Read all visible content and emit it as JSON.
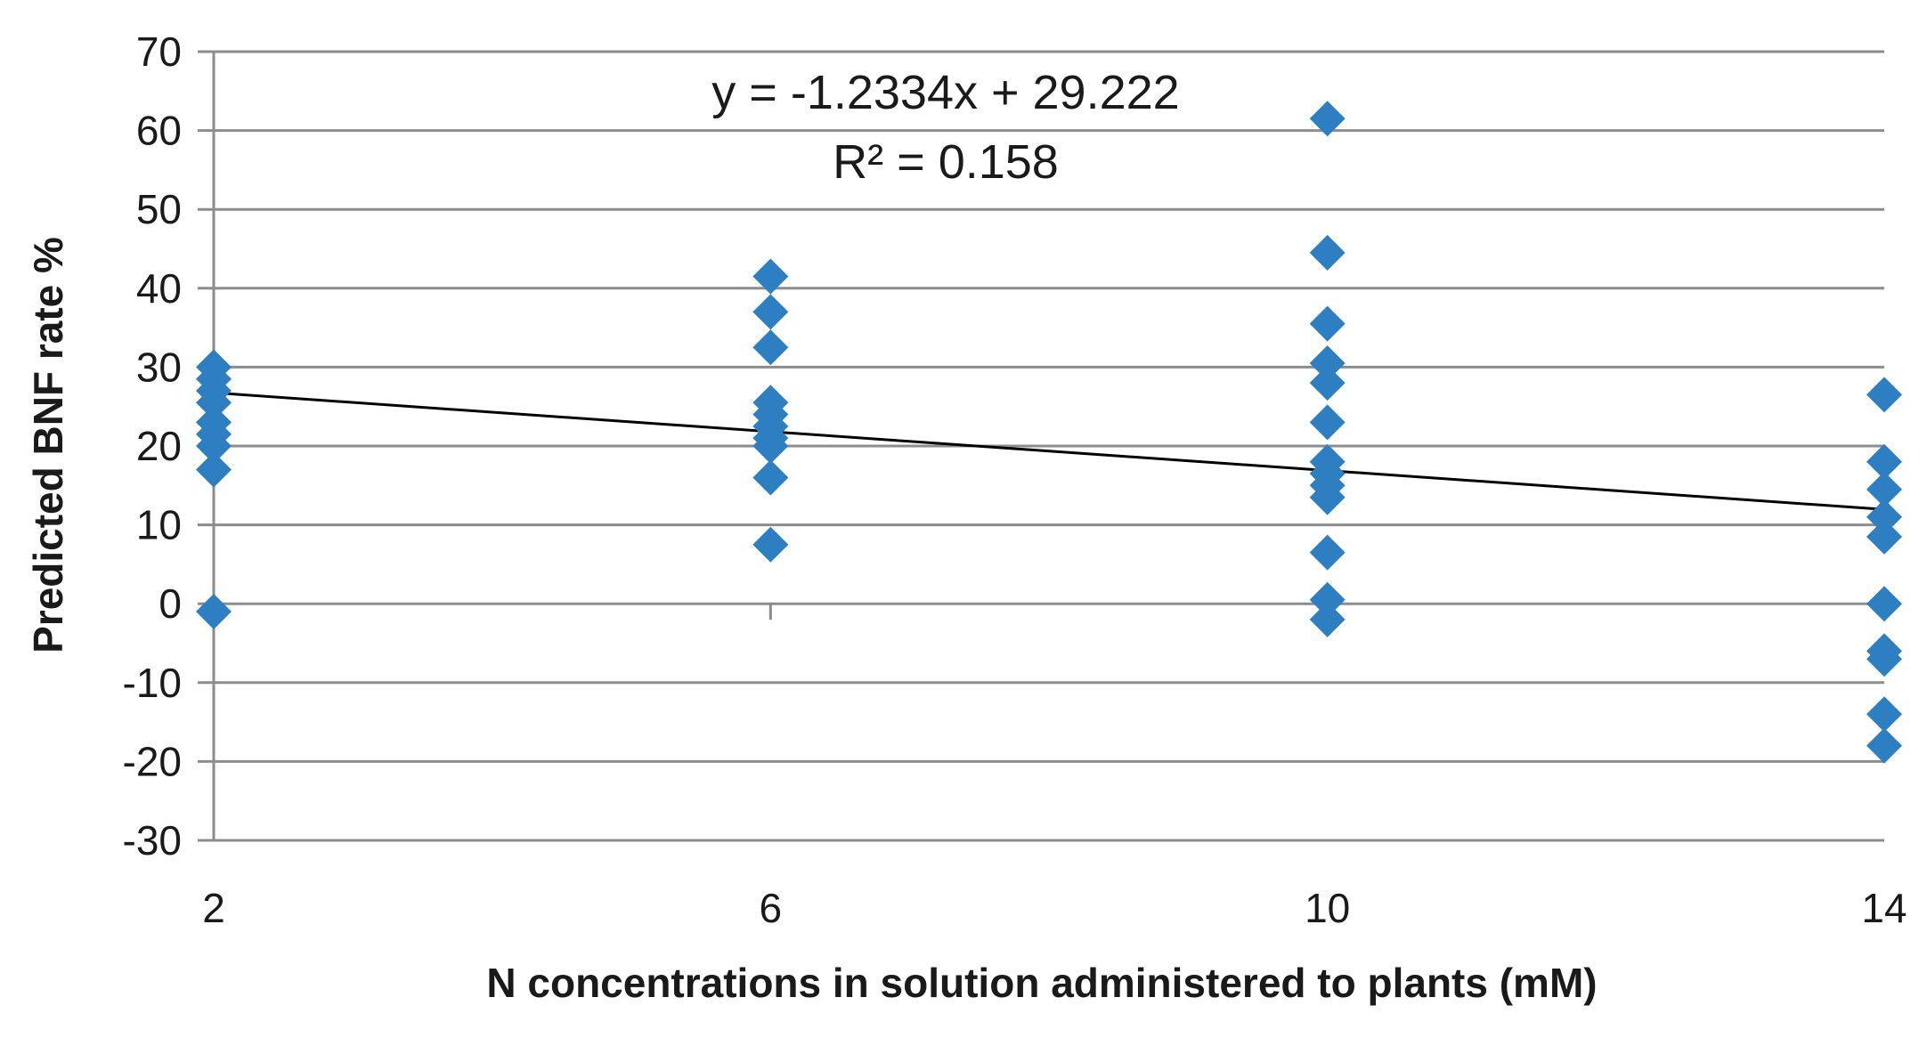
{
  "chart_data": {
    "type": "scatter",
    "title": "",
    "xlabel": "N concentrations in solution administered to plants (mM)",
    "ylabel": "Predicted BNF rate %",
    "ylim": [
      -30,
      70
    ],
    "y_ticks": [
      -30,
      -20,
      -10,
      0,
      10,
      20,
      30,
      40,
      50,
      60,
      70
    ],
    "x_categories": [
      "2",
      "6",
      "10",
      "14"
    ],
    "x_values": [
      2,
      6,
      10,
      14
    ],
    "grid": true,
    "legend": "none",
    "marker": "diamond",
    "marker_color": "#2e7fc1",
    "trendline_color": "#000000",
    "series": [
      {
        "points": [
          {
            "x": 2,
            "y": 30
          },
          {
            "x": 2,
            "y": 28.5
          },
          {
            "x": 2,
            "y": 27
          },
          {
            "x": 2,
            "y": 25.5
          },
          {
            "x": 2,
            "y": 23
          },
          {
            "x": 2,
            "y": 21.5
          },
          {
            "x": 2,
            "y": 20
          },
          {
            "x": 2,
            "y": 17
          },
          {
            "x": 2,
            "y": -1
          },
          {
            "x": 6,
            "y": 41.5
          },
          {
            "x": 6,
            "y": 37
          },
          {
            "x": 6,
            "y": 32.5
          },
          {
            "x": 6,
            "y": 25.5
          },
          {
            "x": 6,
            "y": 24
          },
          {
            "x": 6,
            "y": 22.5
          },
          {
            "x": 6,
            "y": 21
          },
          {
            "x": 6,
            "y": 20
          },
          {
            "x": 6,
            "y": 16
          },
          {
            "x": 6,
            "y": 7.5
          },
          {
            "x": 10,
            "y": 61.5
          },
          {
            "x": 10,
            "y": 44.5
          },
          {
            "x": 10,
            "y": 35.5
          },
          {
            "x": 10,
            "y": 30.5
          },
          {
            "x": 10,
            "y": 28
          },
          {
            "x": 10,
            "y": 23
          },
          {
            "x": 10,
            "y": 18
          },
          {
            "x": 10,
            "y": 16.5
          },
          {
            "x": 10,
            "y": 15
          },
          {
            "x": 10,
            "y": 13.5
          },
          {
            "x": 10,
            "y": 6.5
          },
          {
            "x": 10,
            "y": 0.5
          },
          {
            "x": 10,
            "y": -2
          },
          {
            "x": 14,
            "y": 26.5
          },
          {
            "x": 14,
            "y": 18
          },
          {
            "x": 14,
            "y": 14.5
          },
          {
            "x": 14,
            "y": 11
          },
          {
            "x": 14,
            "y": 8.5
          },
          {
            "x": 14,
            "y": 0
          },
          {
            "x": 14,
            "y": -6
          },
          {
            "x": 14,
            "y": -7
          },
          {
            "x": 14,
            "y": -14
          },
          {
            "x": 14,
            "y": -18
          }
        ]
      }
    ],
    "trendline": {
      "slope": -1.2334,
      "intercept": 29.222,
      "x_range": [
        2,
        14
      ]
    },
    "annotations": {
      "equation": "y = -1.2334x + 29.222",
      "r_squared": "R² = 0.158"
    }
  }
}
